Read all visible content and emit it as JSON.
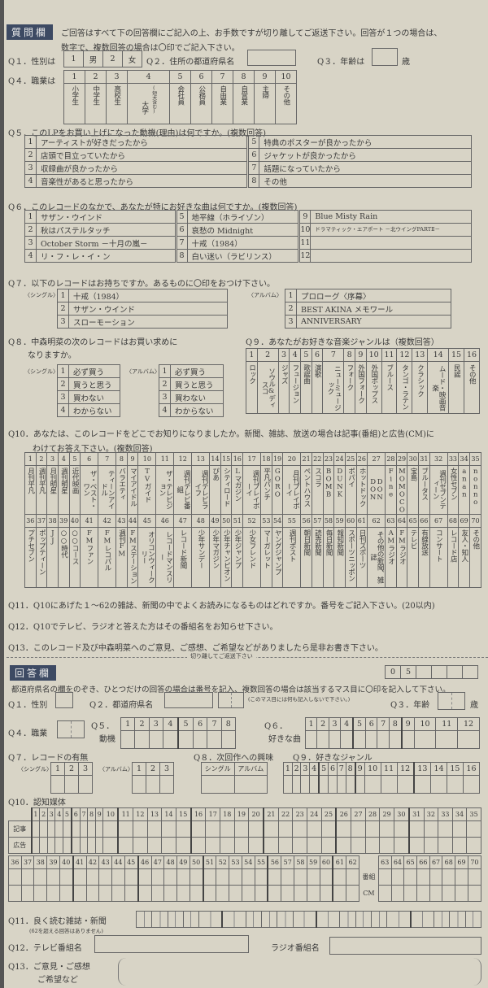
{
  "header": {
    "badge": "質問欄",
    "instruction1": "ご回答はすべて下の回答欄にご記入の上、お手数ですが切り離してご返送下さい。回答が１つの場合は、",
    "instruction2": "数字で、複数回答の場合は〇印でご記入下さい。"
  },
  "q1": {
    "label": "Q１．性別は",
    "options": [
      "1",
      "男",
      "2",
      "女"
    ]
  },
  "q2": {
    "label": "Q２．住所の都道府県名"
  },
  "q3": {
    "label": "Q３．年齢は",
    "unit": "歳"
  },
  "q4": {
    "label": "Q４．職業は",
    "numbers": [
      "1",
      "2",
      "3",
      "4",
      "5",
      "6",
      "7",
      "8",
      "9",
      "10"
    ],
    "options": [
      "小学生",
      "中学生",
      "高校生",
      "大学",
      "(短大含む)",
      "会社員",
      "公務員",
      "自由業",
      "自営業",
      "主婦",
      "その他"
    ]
  },
  "q5": {
    "label": "Q５．このLPをお買い上げになった動機(理由)は何ですか。(複数回答)",
    "options": [
      "アーティストが好きだったから",
      "店頭で目立っていたから",
      "収録曲が良かったから",
      "音楽性があると思ったから",
      "特典のポスターが良かったから",
      "ジャケットが良かったから",
      "話題になっていたから",
      "その他"
    ]
  },
  "q6": {
    "label": "Q６．このレコードのなかで、あなたが特にお好きな曲は何ですか。(複数回答)",
    "options": [
      "サザン・ウインド",
      "秋はパステルタッチ",
      "October Storm －十月の嵐－",
      "リ・フ・レ・イ・ン",
      "地平線（ホライゾン）",
      "哀愁の Midnight",
      "十戒（1984）",
      "白い迷い（ラビリンス）",
      "Blue Misty Rain",
      "ドラマティック・エアポート －北ウイングPARTⅡ－",
      "",
      ""
    ]
  },
  "q7": {
    "label": "Q７．以下のレコードはお持ちですか。あるものに〇印をおつけ下さい。",
    "single_label": "〈シングル〉",
    "album_label": "〈アルバム〉",
    "singles": [
      "十戒（1984）",
      "サザン・ウインド",
      "スローモーション"
    ],
    "albums": [
      "プロローグ〈序幕〉",
      "BEST AKINA メモワール",
      "ANNIVERSARY"
    ]
  },
  "q8": {
    "label1": "Q８．中森明菜の次のレコードはお買い求めに",
    "label2": "なりますか。",
    "single_label": "〈シングル〉",
    "album_label": "〈アルバム〉",
    "options": [
      "必ず買う",
      "買うと思う",
      "買わない",
      "わからない"
    ]
  },
  "q9": {
    "label": "Q９．あなたがお好きな音楽ジャンルは（複数回答）",
    "options": [
      "ロック",
      "ソウル&ディスコ",
      "ジャズ",
      "フュージョン",
      "歌謡曲",
      "演歌",
      "ニューミュージック",
      "フォーク",
      "外国フォーク",
      "外国ポップス",
      "ブルース",
      "タンゴ・ラテン",
      "クラシック",
      "ムード・映画音楽",
      "民謡",
      "その他"
    ]
  },
  "q10": {
    "label1": "Q10．あなたは、このレコードをどこでお知りになりましたか。新聞、雑誌、放送の場合は記事(番組)と広告(CM)に",
    "label2": "わけてお答え下さい。(複数回答)",
    "options": [
      "月刊平凡",
      "週刊平凡",
      "月刊明星",
      "週刊明星",
      "近代映画",
      "ザ・ベスト・ワン",
      "ティーンアイドル",
      "バラエティ",
      "マイアイドル",
      "TVガイド",
      "ザ・テレビジョン",
      "週刊テレビ番組",
      "週刊テレビライフ",
      "ぴあ",
      "シティロード",
      "Lマガジン",
      "週刊プレイボーイ",
      "平凡パンチ",
      "GORO",
      "月刊プレイボーイ",
      "ペントハウス",
      "スコラ",
      "BOMB",
      "DUNK",
      "ポパイ",
      "ホットドック",
      "DON DON",
      "Fine",
      "MOMOCO",
      "宝島",
      "ブルータス",
      "週刊セブンティーン",
      "女性セブン",
      "anan",
      "nonno",
      "プチセブン",
      "ポップティーン",
      "JJ",
      "○○時代",
      "○○コース",
      "FMファン",
      "FMレコパル",
      "週刊FM",
      "FMステーション",
      "オリコンウィークリー",
      "レコードマンスリー",
      "レコード新聞",
      "少年サンデー",
      "少年マガジン",
      "少年チャンピオン",
      "少年ジャンプ",
      "少女フレンド",
      "マーガレット",
      "ヤングジャンプ",
      "週刊ポスト",
      "朝日新聞",
      "読売新聞",
      "毎日新聞",
      "報知新聞",
      "スポーツニッポン",
      "日刊スポーツ",
      "その他の新聞、雑誌",
      "AMラジオ",
      "FMラジオ",
      "テレビ",
      "有線放送",
      "コンサート",
      "レコード店",
      "友人・知人",
      "その他"
    ]
  },
  "q11": {
    "label": "Q11．Q10にあげた１～62の雑誌、新聞の中でよくお読みになるものはどれですか。番号をご記入下さい。(20以内)"
  },
  "q12": {
    "label": "Q12．Q10でテレビ、ラジオと答えた方はその番組名をお知らせ下さい。"
  },
  "q13": {
    "label": "Q13．このレコード及び中森明菜へのご意見、ご感想、ご希望などがありましたら是非お書き下さい。"
  },
  "cut_line": "切り離してご返送下さい",
  "answer": {
    "badge": "回答欄",
    "code": [
      "0",
      "5",
      "",
      "",
      "",
      ""
    ],
    "instruction": "都道府県名の欄をのぞき、ひとつだけの回答の場合は番号を記入、複数回答の場合は該当するマス目に〇印を記入して下さい。",
    "q1": "Q１．性別",
    "q2": "Q２．都道府県名",
    "q2_note": "(このマス目には何も記入しないで下さい。)",
    "q3": "Q３．年齢",
    "q3_unit": "歳",
    "q4": "Q４．職業",
    "q5a": "Q５．",
    "q5b": "動機",
    "q6a": "Q６．",
    "q6b": "好きな曲",
    "q7": "Q７．レコードの有無",
    "q7_single": "〈シングル〉",
    "q7_album": "〈アルバム〉",
    "q8": "Q８．次回作への興味",
    "q8_cols": [
      "シングル",
      "アルバム"
    ],
    "q9": "Q９．好きなジャンル",
    "q10": "Q10．認知媒体",
    "q10_rows": [
      "記事",
      "広告"
    ],
    "q10_rows2": [
      "番組",
      "CM"
    ],
    "q11": "Q11．良く読む雑誌・新聞",
    "q11_note": "(62を超える回答はありません)",
    "q12": "Q12．テレビ番組名",
    "q12_radio": "ラジオ番組名",
    "q13a": "Q13．ご意見・ご感想",
    "q13b": "ご希望など"
  }
}
